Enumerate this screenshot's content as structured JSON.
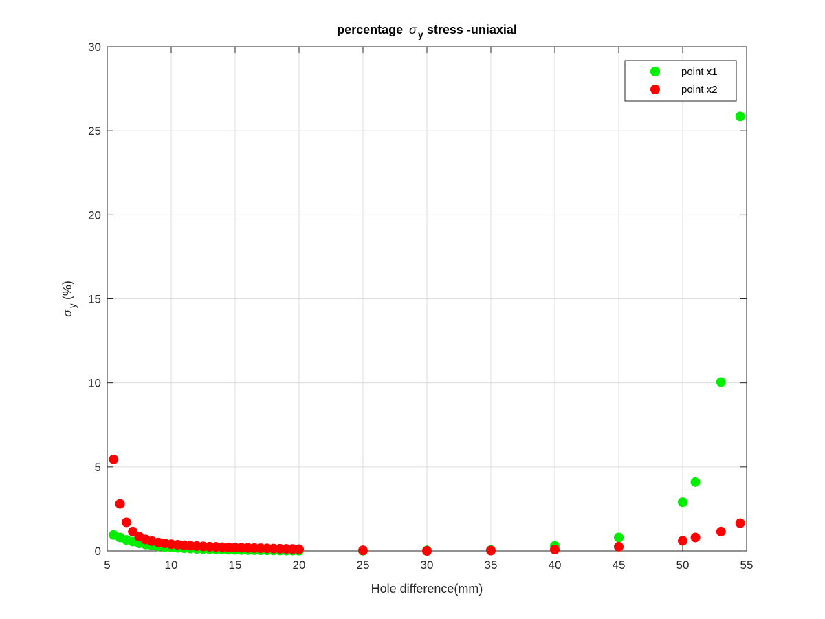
{
  "chart_data": {
    "type": "scatter",
    "title": {
      "prefix": "percentage ",
      "symbol": "σ",
      "subscript": "y",
      "suffix": " stress -uniaxial"
    },
    "xlabel": "Hole difference(mm)",
    "ylabel": {
      "symbol": "σ",
      "subscript": "y",
      "suffix": " (%)"
    },
    "xlim": [
      5,
      55
    ],
    "ylim": [
      0,
      30
    ],
    "xticks": [
      5,
      10,
      15,
      20,
      25,
      30,
      35,
      40,
      45,
      50,
      55
    ],
    "yticks": [
      0,
      5,
      10,
      15,
      20,
      25,
      30
    ],
    "grid": true,
    "legend_position": "top-right",
    "series": [
      {
        "name": "point x1",
        "color": "#00ee00",
        "x": [
          5.5,
          6,
          6.5,
          7,
          7.5,
          8,
          8.5,
          9,
          9.5,
          10,
          10.5,
          11,
          11.5,
          12,
          12.5,
          13,
          13.5,
          14,
          14.5,
          15,
          15.5,
          16,
          16.5,
          17,
          17.5,
          18,
          18.5,
          19,
          19.5,
          20,
          25,
          30,
          35,
          40,
          45,
          50,
          51,
          53,
          54.5
        ],
        "y": [
          0.95,
          0.8,
          0.65,
          0.55,
          0.45,
          0.38,
          0.32,
          0.27,
          0.23,
          0.2,
          0.18,
          0.16,
          0.14,
          0.12,
          0.11,
          0.1,
          0.09,
          0.08,
          0.07,
          0.06,
          0.055,
          0.05,
          0.045,
          0.04,
          0.035,
          0.03,
          0.025,
          0.02,
          0.018,
          0.015,
          0.01,
          0.02,
          0.05,
          0.3,
          0.8,
          2.9,
          4.1,
          10.05,
          25.85
        ]
      },
      {
        "name": "point x2",
        "color": "#ff0000",
        "x": [
          5.5,
          6,
          6.5,
          7,
          7.5,
          8,
          8.5,
          9,
          9.5,
          10,
          10.5,
          11,
          11.5,
          12,
          12.5,
          13,
          13.5,
          14,
          14.5,
          15,
          15.5,
          16,
          16.5,
          17,
          17.5,
          18,
          18.5,
          19,
          19.5,
          20,
          25,
          30,
          35,
          40,
          45,
          50,
          51,
          53,
          54.5
        ],
        "y": [
          5.45,
          2.8,
          1.7,
          1.15,
          0.85,
          0.68,
          0.58,
          0.5,
          0.45,
          0.4,
          0.37,
          0.34,
          0.31,
          0.29,
          0.27,
          0.25,
          0.24,
          0.22,
          0.21,
          0.2,
          0.19,
          0.18,
          0.17,
          0.16,
          0.15,
          0.14,
          0.13,
          0.12,
          0.11,
          0.1,
          0.03,
          0.0,
          0.02,
          0.08,
          0.25,
          0.6,
          0.8,
          1.15,
          1.65
        ]
      }
    ]
  }
}
